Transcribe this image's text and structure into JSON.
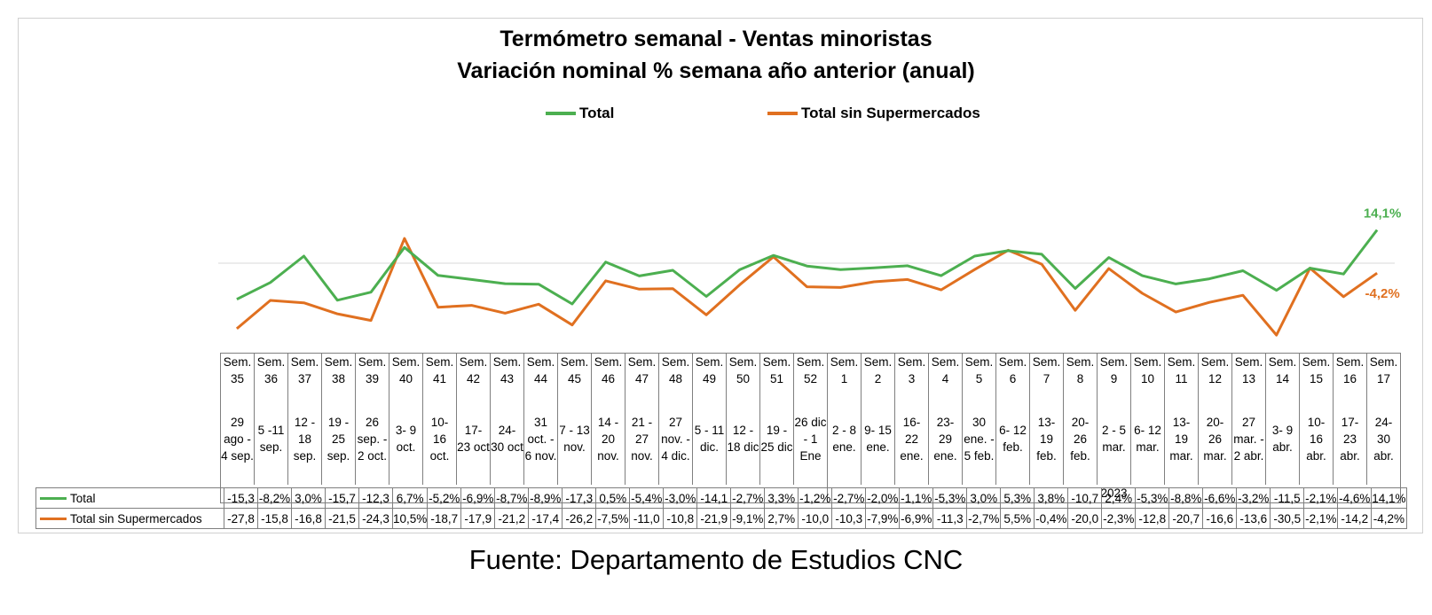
{
  "title_line1": "Termómetro semanal - Ventas minoristas",
  "title_line2": "Variación nominal % semana año anterior (anual)",
  "source": "Fuente: Departamento de Estudios CNC",
  "colors": {
    "total": "#4caf50",
    "sin_super": "#e07020",
    "grid": "#7f7f7f"
  },
  "chart_data": {
    "type": "line",
    "title": "Termómetro semanal - Ventas minoristas — Variación nominal % semana año anterior (anual)",
    "legend_position": "top",
    "year_label": "2023",
    "weeks": [
      "Sem. 35",
      "Sem. 36",
      "Sem. 37",
      "Sem. 38",
      "Sem. 39",
      "Sem. 40",
      "Sem. 41",
      "Sem. 42",
      "Sem. 43",
      "Sem. 44",
      "Sem. 45",
      "Sem. 46",
      "Sem. 47",
      "Sem. 48",
      "Sem. 49",
      "Sem. 50",
      "Sem. 51",
      "Sem. 52",
      "Sem. 1",
      "Sem. 2",
      "Sem. 3",
      "Sem. 4",
      "Sem. 5",
      "Sem. 6",
      "Sem. 7",
      "Sem. 8",
      "Sem. 9",
      "Sem. 10",
      "Sem. 11",
      "Sem. 12",
      "Sem. 13",
      "Sem. 14",
      "Sem. 15",
      "Sem. 16",
      "Sem. 17"
    ],
    "dates": [
      "29 ago - 4 sep.",
      "5 -11 sep.",
      "12 - 18 sep.",
      "19 - 25 sep.",
      "26 sep. - 2 oct.",
      "3- 9 oct.",
      "10- 16 oct.",
      "17- 23 oct",
      "24- 30 oct",
      "31 oct. - 6 nov.",
      "7 - 13 nov.",
      "14 - 20 nov.",
      "21 - 27 nov.",
      "27 nov. - 4 dic.",
      "5 - 11 dic.",
      "12 - 18 dic",
      "19 - 25 dic",
      "26 dic - 1 Ene",
      "2 - 8 ene.",
      "9- 15 ene.",
      "16- 22 ene.",
      "23- 29 ene.",
      "30 ene. - 5 feb.",
      "6- 12 feb.",
      "13- 19 feb.",
      "20- 26 feb.",
      "2 - 5 mar.",
      "6- 12 mar.",
      "13- 19 mar.",
      "20- 26 mar.",
      "27 mar. - 2 abr.",
      "3- 9 abr.",
      "10- 16 abr.",
      "17- 23 abr.",
      "24- 30 abr."
    ],
    "series": [
      {
        "name": "Total",
        "color": "#4caf50",
        "end_label": "14,1%",
        "values": [
          -15.3,
          -8.2,
          3.0,
          -15.7,
          -12.3,
          6.7,
          -5.2,
          -6.9,
          -8.7,
          -8.9,
          -17.3,
          0.5,
          -5.4,
          -3.0,
          -14.1,
          -2.7,
          3.3,
          -1.2,
          -2.7,
          -2.0,
          -1.1,
          -5.3,
          3.0,
          5.3,
          3.8,
          -10.7,
          2.4,
          -5.3,
          -8.8,
          -6.6,
          -3.2,
          -11.5,
          -2.1,
          -4.6,
          14.1
        ],
        "labels": [
          "-15,3",
          "-8,2%",
          "3,0%",
          "-15,7",
          "-12,3",
          "6,7%",
          "-5,2%",
          "-6,9%",
          "-8,7%",
          "-8,9%",
          "-17,3",
          "0,5%",
          "-5,4%",
          "-3,0%",
          "-14,1",
          "-2,7%",
          "3,3%",
          "-1,2%",
          "-2,7%",
          "-2,0%",
          "-1,1%",
          "-5,3%",
          "3,0%",
          "5,3%",
          "3,8%",
          "-10,7",
          "2,4%",
          "-5,3%",
          "-8,8%",
          "-6,6%",
          "-3,2%",
          "-11,5",
          "-2,1%",
          "-4,6%",
          "14,1%"
        ]
      },
      {
        "name": "Total sin Supermercados",
        "color": "#e07020",
        "end_label": "-4,2%",
        "values": [
          -27.8,
          -15.8,
          -16.8,
          -21.5,
          -24.3,
          10.5,
          -18.7,
          -17.9,
          -21.2,
          -17.4,
          -26.2,
          -7.5,
          -11.0,
          -10.8,
          -21.9,
          -9.1,
          2.7,
          -10.0,
          -10.3,
          -7.9,
          -6.9,
          -11.3,
          -2.7,
          5.5,
          -0.4,
          -20.0,
          -2.3,
          -12.8,
          -20.7,
          -16.6,
          -13.6,
          -30.5,
          -2.1,
          -14.2,
          -4.2
        ],
        "labels": [
          "-27,8",
          "-15,8",
          "-16,8",
          "-21,5",
          "-24,3",
          "10,5%",
          "-18,7",
          "-17,9",
          "-21,2",
          "-17,4",
          "-26,2",
          "-7,5%",
          "-11,0",
          "-10,8",
          "-21,9",
          "-9,1%",
          "2,7%",
          "-10,0",
          "-10,3",
          "-7,9%",
          "-6,9%",
          "-11,3",
          "-2,7%",
          "5,5%",
          "-0,4%",
          "-20,0",
          "-2,3%",
          "-12,8",
          "-20,7",
          "-16,6",
          "-13,6",
          "-30,5",
          "-2,1%",
          "-14,2",
          "-4,2%"
        ]
      }
    ]
  }
}
